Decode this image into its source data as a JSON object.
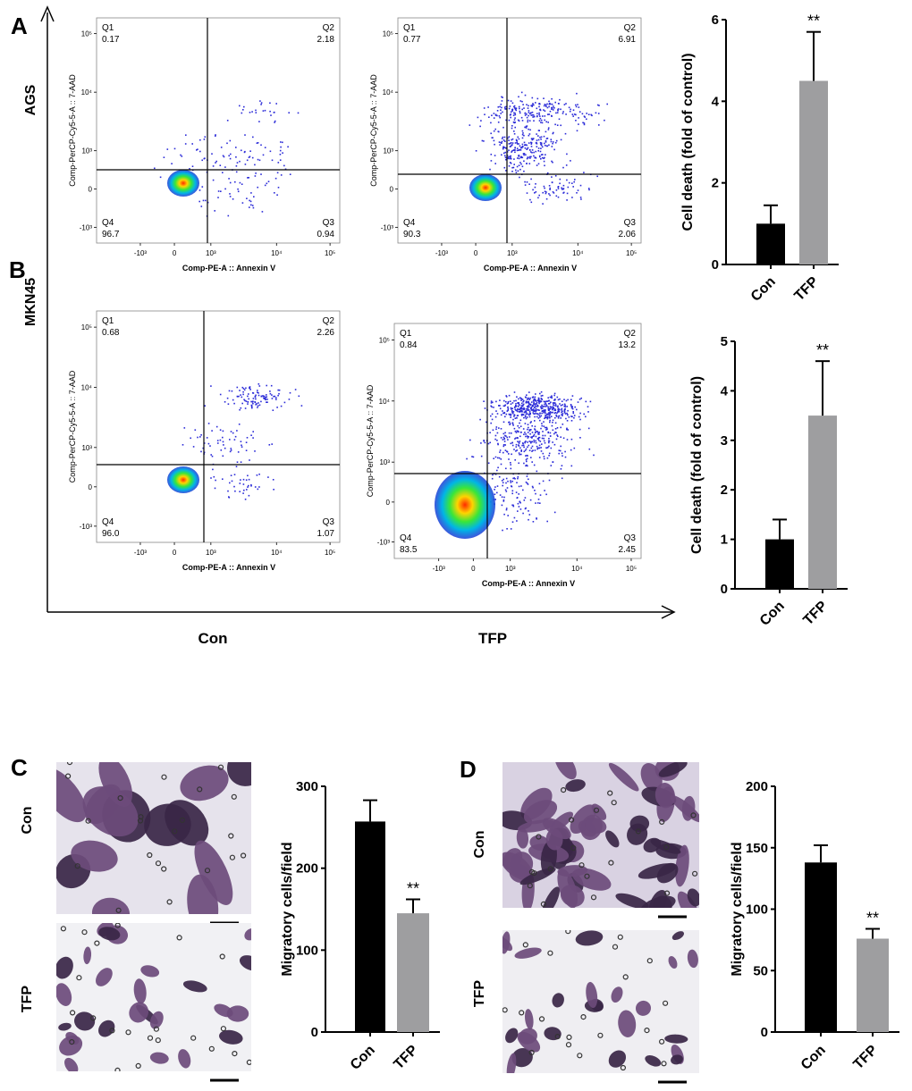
{
  "panel_labels": {
    "A": "A",
    "B": "B",
    "C": "C",
    "D": "D"
  },
  "row_labels": {
    "ags": "AGS",
    "mkn45": "MKN45"
  },
  "column_labels": {
    "con": "Con",
    "tfp": "TFP"
  },
  "micrograph_labels": {
    "c_top": "Con",
    "c_bottom": "TFP",
    "d_top": "Con",
    "d_bottom": "TFP"
  },
  "colors": {
    "con_bar": "#000000",
    "tfp_bar": "#9e9ea0",
    "scatter_dot": "#2b2bd8",
    "stain_dark": "#3a2646",
    "stain_light": "#6d4b7b",
    "micrograph_bg": "#e6e3ec"
  },
  "flow": {
    "x_axis_label": "Comp-PE-A :: Annexin V",
    "y_axis_label": "Comp-PerCP-Cy5-5-A :: 7-AAD",
    "x_ticks": [
      "-10³",
      "0",
      "10³",
      "10⁴",
      "10⁵"
    ],
    "y_ticks": [
      "10⁵",
      "10⁴",
      "10³",
      "0",
      "-10³"
    ],
    "plots": [
      {
        "cell_line": "AGS",
        "condition": "Con",
        "quadrants": {
          "Q1": "0.17",
          "Q2": "2.18",
          "Q3": "0.94",
          "Q4": "96.7"
        }
      },
      {
        "cell_line": "AGS",
        "condition": "TFP",
        "quadrants": {
          "Q1": "0.77",
          "Q2": "6.91",
          "Q3": "2.06",
          "Q4": "90.3"
        }
      },
      {
        "cell_line": "MKN45",
        "condition": "Con",
        "quadrants": {
          "Q1": "0.68",
          "Q2": "2.26",
          "Q3": "1.07",
          "Q4": "96.0"
        }
      },
      {
        "cell_line": "MKN45",
        "condition": "TFP",
        "quadrants": {
          "Q1": "0.84",
          "Q2": "13.2",
          "Q3": "2.45",
          "Q4": "83.5"
        }
      }
    ]
  },
  "chart_data": [
    {
      "id": "A-bar",
      "type": "bar",
      "title": "",
      "categories": [
        "Con",
        "TFP"
      ],
      "values": [
        1.0,
        4.5
      ],
      "errors": [
        0.45,
        1.2
      ],
      "significance": [
        "",
        "**"
      ],
      "xlabel": "",
      "ylabel": "Cell death (fold of control)",
      "ylim": [
        0,
        6
      ],
      "yticks": [
        0,
        2,
        4,
        6
      ]
    },
    {
      "id": "B-bar",
      "type": "bar",
      "title": "",
      "categories": [
        "Con",
        "TFP"
      ],
      "values": [
        1.0,
        3.5
      ],
      "errors": [
        0.4,
        1.1
      ],
      "significance": [
        "",
        "**"
      ],
      "xlabel": "",
      "ylabel": "Cell death (fold of control)",
      "ylim": [
        0,
        5
      ],
      "yticks": [
        0,
        1,
        2,
        3,
        4,
        5
      ]
    },
    {
      "id": "C-bar",
      "type": "bar",
      "title": "",
      "categories": [
        "Con",
        "TFP"
      ],
      "values": [
        257,
        145
      ],
      "errors": [
        26,
        17
      ],
      "significance": [
        "",
        "**"
      ],
      "xlabel": "",
      "ylabel": "Migratory cells/field",
      "ylim": [
        0,
        300
      ],
      "yticks": [
        0,
        100,
        200,
        300
      ]
    },
    {
      "id": "D-bar",
      "type": "bar",
      "title": "",
      "categories": [
        "Con",
        "TFP"
      ],
      "values": [
        138,
        76
      ],
      "errors": [
        14,
        8
      ],
      "significance": [
        "",
        "**"
      ],
      "xlabel": "",
      "ylabel": "Migratory cells/field",
      "ylim": [
        0,
        200
      ],
      "yticks": [
        0,
        50,
        100,
        150,
        200
      ]
    }
  ]
}
